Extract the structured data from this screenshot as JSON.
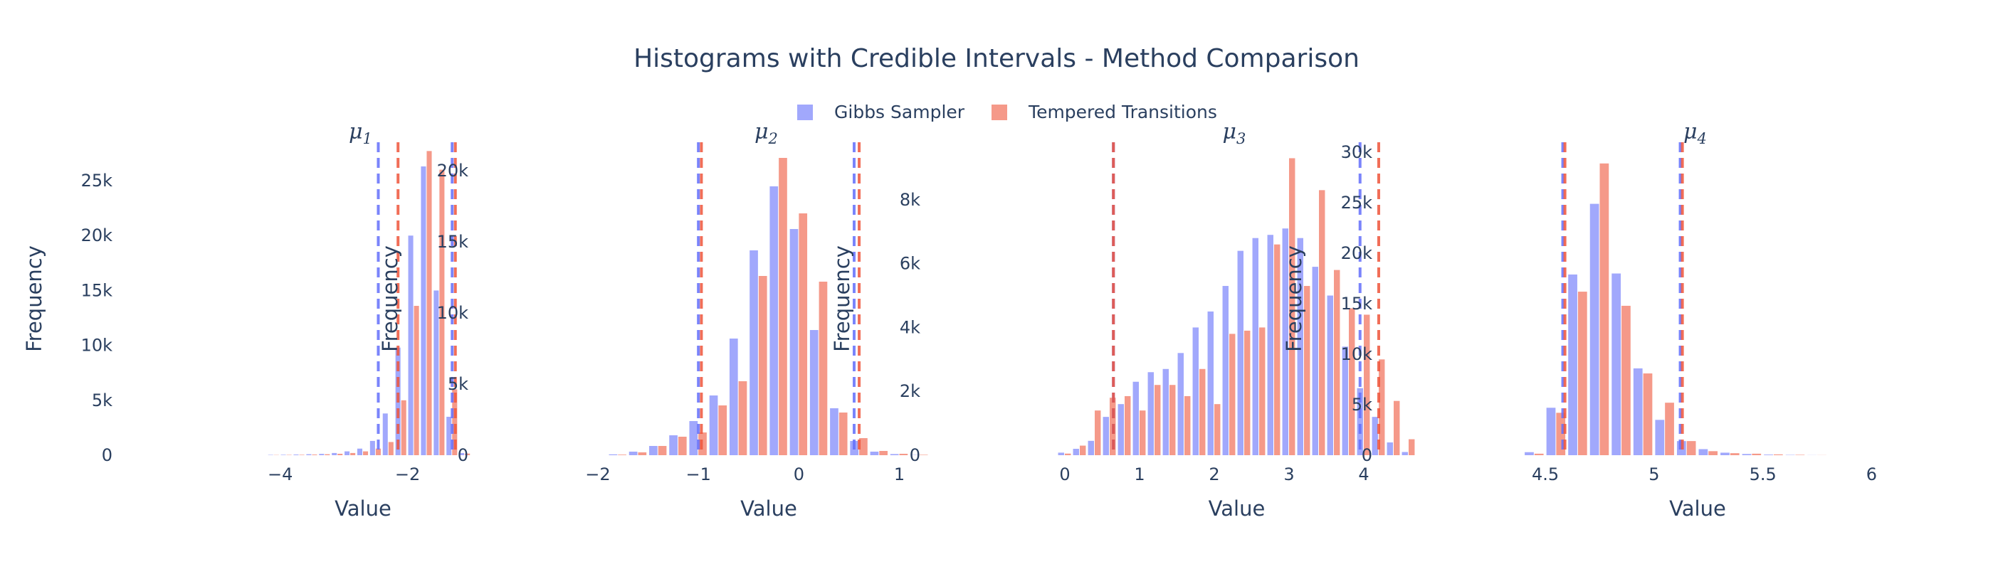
{
  "title": "Histograms with Credible Intervals - Method Comparison",
  "legend": [
    {
      "name": "Gibbs Sampler",
      "color": "#636efa"
    },
    {
      "name": "Tempered Transitions",
      "color": "#ef553b"
    }
  ],
  "chart_data": [
    {
      "type": "bar",
      "subplot_title": "μ",
      "subplot_index": "1",
      "xlabel": "Value",
      "ylabel": "Frequency",
      "xlim": [
        -4.6,
        -0.8
      ],
      "ylim": [
        0,
        28500
      ],
      "xticks": [
        {
          "v": -4,
          "label": "−4"
        },
        {
          "v": -2,
          "label": "−2"
        }
      ],
      "yticks": [
        {
          "v": 0,
          "label": "0"
        },
        {
          "v": 5000,
          "label": "5k"
        },
        {
          "v": 10000,
          "label": "10k"
        },
        {
          "v": 15000,
          "label": "15k"
        },
        {
          "v": 20000,
          "label": "20k"
        },
        {
          "v": 25000,
          "label": "25k"
        }
      ],
      "bin_width": 0.2,
      "series": [
        {
          "name": "Gibbs Sampler",
          "x": [
            -4.1,
            -3.9,
            -3.7,
            -3.5,
            -3.3,
            -3.1,
            -2.9,
            -2.7,
            -2.5,
            -2.3,
            -2.1,
            -1.9,
            -1.7,
            -1.5,
            -1.3,
            -1.1
          ],
          "values": [
            30,
            40,
            60,
            90,
            120,
            200,
            350,
            600,
            1300,
            3800,
            9800,
            20000,
            26300,
            15000,
            3500,
            200
          ]
        },
        {
          "name": "Tempered Transitions",
          "x": [
            -4.1,
            -3.9,
            -3.7,
            -3.5,
            -3.3,
            -3.1,
            -2.9,
            -2.7,
            -2.5,
            -2.3,
            -2.1,
            -1.9,
            -1.7,
            -1.5,
            -1.3,
            -1.1
          ],
          "values": [
            20,
            30,
            40,
            60,
            90,
            130,
            200,
            350,
            600,
            1200,
            5000,
            13600,
            27700,
            26000,
            6000,
            150
          ]
        }
      ],
      "credible_intervals": [
        {
          "series": "Gibbs Sampler",
          "lower": -2.46,
          "upper": -1.3
        },
        {
          "series": "Tempered Transitions",
          "lower": -2.15,
          "upper": -1.25
        }
      ]
    },
    {
      "type": "bar",
      "subplot_title": "μ",
      "subplot_index": "2",
      "xlabel": "Value",
      "ylabel": "Frequency",
      "xlim": [
        -2.0,
        1.4
      ],
      "ylim": [
        0,
        22000
      ],
      "xticks": [
        {
          "v": -2,
          "label": "−2"
        },
        {
          "v": -1,
          "label": "−1"
        },
        {
          "v": 0,
          "label": "0"
        },
        {
          "v": 1,
          "label": "1"
        }
      ],
      "yticks": [
        {
          "v": 0,
          "label": "0"
        },
        {
          "v": 5000,
          "label": "5k"
        },
        {
          "v": 10000,
          "label": "10k"
        },
        {
          "v": 15000,
          "label": "15k"
        },
        {
          "v": 20000,
          "label": "20k"
        }
      ],
      "bin_width": 0.2,
      "series": [
        {
          "name": "Gibbs Sampler",
          "x": [
            -1.8,
            -1.6,
            -1.4,
            -1.2,
            -1.0,
            -0.8,
            -0.6,
            -0.4,
            -0.2,
            0.0,
            0.2,
            0.4,
            0.6,
            0.8,
            1.0,
            1.2
          ],
          "values": [
            60,
            250,
            650,
            1400,
            2400,
            4200,
            8200,
            14400,
            18900,
            15900,
            8800,
            3300,
            1000,
            250,
            80,
            20
          ]
        },
        {
          "name": "Tempered Transitions",
          "x": [
            -1.8,
            -1.6,
            -1.4,
            -1.2,
            -1.0,
            -0.8,
            -0.6,
            -0.4,
            -0.2,
            0.0,
            0.2,
            0.4,
            0.6,
            0.8,
            1.0,
            1.2
          ],
          "values": [
            40,
            200,
            650,
            1300,
            1600,
            3500,
            5200,
            12600,
            20900,
            17000,
            12200,
            3000,
            1200,
            300,
            100,
            30
          ]
        }
      ],
      "credible_intervals": [
        {
          "series": "Gibbs Sampler",
          "lower": -1.0,
          "upper": 0.55
        },
        {
          "series": "Tempered Transitions",
          "lower": -0.97,
          "upper": 0.6
        }
      ]
    },
    {
      "type": "bar",
      "subplot_title": "μ",
      "subplot_index": "3",
      "xlabel": "Value",
      "ylabel": "Frequency",
      "xlim": [
        -0.2,
        4.8
      ],
      "ylim": [
        0,
        9800
      ],
      "xticks": [
        {
          "v": 0,
          "label": "0"
        },
        {
          "v": 1,
          "label": "1"
        },
        {
          "v": 2,
          "label": "2"
        },
        {
          "v": 3,
          "label": "3"
        },
        {
          "v": 4,
          "label": "4"
        }
      ],
      "yticks": [
        {
          "v": 0,
          "label": "0"
        },
        {
          "v": 2000,
          "label": "2k"
        },
        {
          "v": 4000,
          "label": "4k"
        },
        {
          "v": 6000,
          "label": "6k"
        },
        {
          "v": 8000,
          "label": "8k"
        }
      ],
      "bin_width": 0.2,
      "series": [
        {
          "name": "Gibbs Sampler",
          "x": [
            0.0,
            0.2,
            0.4,
            0.6,
            0.8,
            1.0,
            1.2,
            1.4,
            1.6,
            1.8,
            2.0,
            2.2,
            2.4,
            2.6,
            2.8,
            3.0,
            3.2,
            3.4,
            3.6,
            3.8,
            4.0,
            4.2,
            4.4,
            4.6
          ],
          "values": [
            80,
            200,
            450,
            1200,
            1600,
            2300,
            2600,
            2700,
            3200,
            4000,
            4500,
            5300,
            6400,
            6800,
            6900,
            7100,
            6800,
            5900,
            5000,
            3400,
            2100,
            1200,
            400,
            100
          ]
        },
        {
          "name": "Tempered Transitions",
          "x": [
            0.0,
            0.2,
            0.4,
            0.6,
            0.8,
            1.0,
            1.2,
            1.4,
            1.6,
            1.8,
            2.0,
            2.2,
            2.4,
            2.6,
            2.8,
            3.0,
            3.2,
            3.4,
            3.6,
            3.8,
            4.0,
            4.2,
            4.4,
            4.6
          ],
          "values": [
            50,
            300,
            1400,
            1800,
            1850,
            1400,
            2200,
            2200,
            1850,
            2700,
            1600,
            3800,
            3900,
            4000,
            6600,
            9300,
            5300,
            8300,
            5800,
            4600,
            4400,
            3000,
            1700,
            500
          ]
        }
      ],
      "credible_intervals": [
        {
          "series": "Gibbs Sampler",
          "lower": 0.65,
          "upper": 3.95
        },
        {
          "series": "Tempered Transitions",
          "lower": 0.65,
          "upper": 4.2
        }
      ]
    },
    {
      "type": "bar",
      "subplot_title": "μ",
      "subplot_index": "4",
      "xlabel": "Value",
      "ylabel": "Frequency",
      "xlim": [
        4.3,
        6.1
      ],
      "ylim": [
        0,
        31000
      ],
      "xticks": [
        {
          "v": 4.5,
          "label": "4.5"
        },
        {
          "v": 5,
          "label": "5"
        },
        {
          "v": 5.5,
          "label": "5.5"
        },
        {
          "v": 6,
          "label": "6"
        }
      ],
      "yticks": [
        {
          "v": 0,
          "label": "0"
        },
        {
          "v": 5000,
          "label": "5k"
        },
        {
          "v": 10000,
          "label": "10k"
        },
        {
          "v": 15000,
          "label": "15k"
        },
        {
          "v": 20000,
          "label": "20k"
        },
        {
          "v": 25000,
          "label": "25k"
        },
        {
          "v": 30000,
          "label": "30k"
        }
      ],
      "bin_width": 0.1,
      "series": [
        {
          "name": "Gibbs Sampler",
          "x": [
            4.45,
            4.55,
            4.65,
            4.75,
            4.85,
            4.95,
            5.05,
            5.15,
            5.25,
            5.35,
            5.45,
            5.55,
            5.65,
            5.75
          ],
          "values": [
            300,
            4700,
            17900,
            24900,
            18000,
            8600,
            3500,
            1400,
            600,
            250,
            120,
            60,
            30,
            10
          ]
        },
        {
          "name": "Tempered Transitions",
          "x": [
            4.45,
            4.55,
            4.65,
            4.75,
            4.85,
            4.95,
            5.05,
            5.15,
            5.25,
            5.35,
            5.45,
            5.55,
            5.65,
            5.75
          ],
          "values": [
            150,
            4200,
            16200,
            28900,
            14800,
            8100,
            5200,
            1400,
            400,
            200,
            150,
            80,
            40,
            10
          ]
        }
      ],
      "credible_intervals": [
        {
          "series": "Gibbs Sampler",
          "lower": 4.58,
          "upper": 5.12
        },
        {
          "series": "Tempered Transitions",
          "lower": 4.59,
          "upper": 5.13
        }
      ]
    }
  ]
}
